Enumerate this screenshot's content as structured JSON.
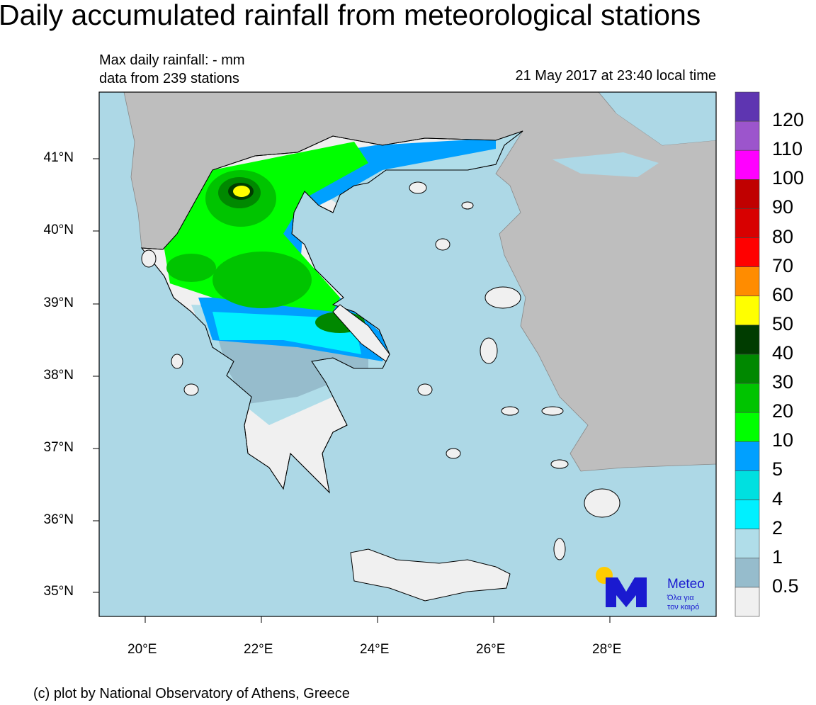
{
  "title": "Daily accumulated rainfall from meteorological stations",
  "subtitle": {
    "max_rainfall": "Max daily rainfall: - mm",
    "stations": "data from 239 stations",
    "datetime": "21 May 2017 at 23:40 local time"
  },
  "credit": "(c) plot by National Observatory of Athens, Greece",
  "lat_labels": [
    "41°N",
    "40°N",
    "39°N",
    "38°N",
    "37°N",
    "36°N",
    "35°N"
  ],
  "lon_labels": [
    "20°E",
    "22°E",
    "24°E",
    "26°E",
    "28°E"
  ],
  "colorbar": {
    "labels": [
      "120",
      "110",
      "100",
      "90",
      "80",
      "70",
      "60",
      "50",
      "40",
      "30",
      "20",
      "10",
      "5",
      "4",
      "2",
      "1",
      "0.5"
    ],
    "colors": [
      "#5e35b1",
      "#9c55cc",
      "#ff00ff",
      "#c00000",
      "#d80000",
      "#ff0000",
      "#ff8c00",
      "#ffff00",
      "#003c00",
      "#008800",
      "#00c400",
      "#00ff00",
      "#00a0ff",
      "#00e0e0",
      "#00f0ff",
      "#b0dde9",
      "#96bccc",
      "#f0f0f0"
    ]
  },
  "logo": {
    "name": "Meteo",
    "tagline1": "Όλα για",
    "tagline2": "τον καιρό"
  },
  "colors": {
    "sea": "#add8e6",
    "land": "#bebebe"
  }
}
